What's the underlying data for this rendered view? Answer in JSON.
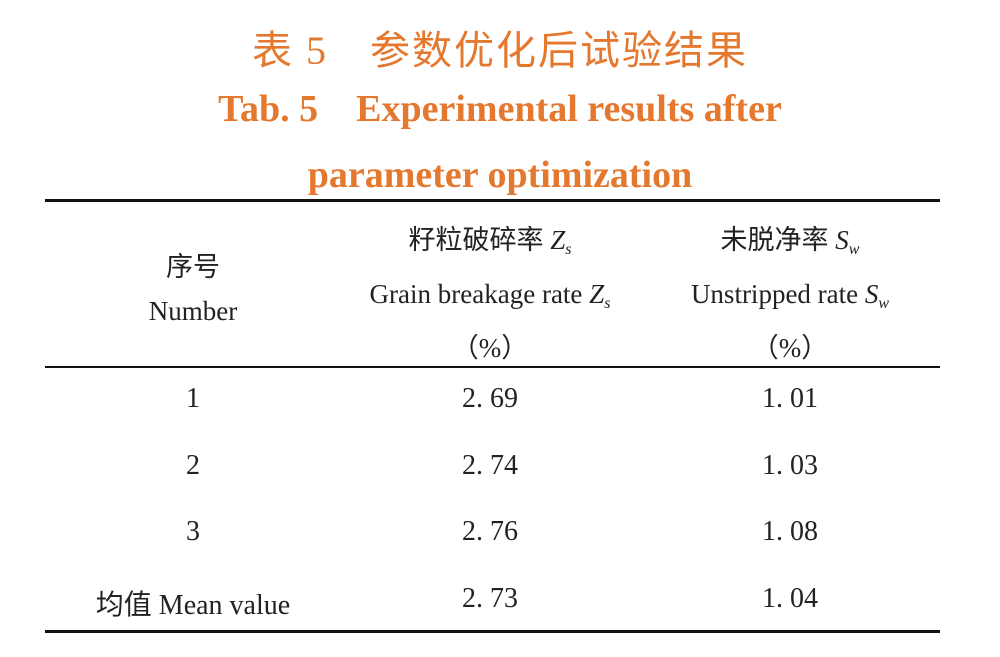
{
  "header": {
    "title_cn": "表 5　参数优化后试验结果",
    "title_en": "Tab. 5　Experimental results after parameter optimization"
  },
  "table": {
    "columns": [
      {
        "cn": "序号",
        "en": "Number"
      },
      {
        "cn": "籽粒破碎率",
        "en": "Grain breakage rate",
        "symbol": "Z",
        "sub": "s",
        "unit": "（%）"
      },
      {
        "cn": "未脱净率",
        "en": "Unstripped rate",
        "symbol": "S",
        "sub": "w",
        "unit": "（%）"
      }
    ],
    "rows": [
      [
        "1",
        "2. 69",
        "1. 01"
      ],
      [
        "2",
        "2. 74",
        "1. 03"
      ],
      [
        "3",
        "2. 76",
        "1. 08"
      ],
      [
        "均值 Mean value",
        "2. 73",
        "1. 04"
      ]
    ]
  }
}
